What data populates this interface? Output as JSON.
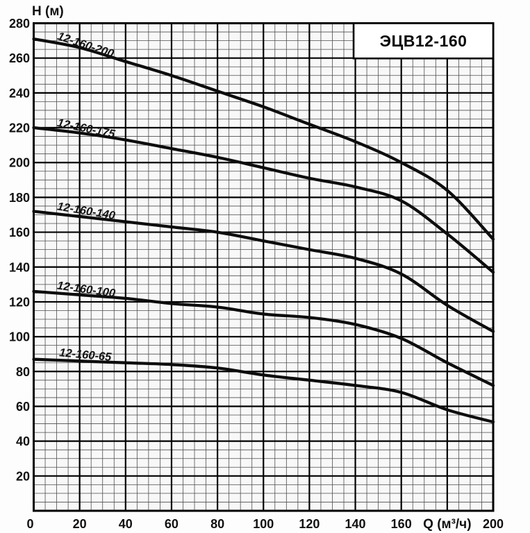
{
  "chart_data": {
    "type": "line",
    "title": "ЭЦВ12-160",
    "xlabel": "Q (м³/ч)",
    "ylabel": "H (м)",
    "xlim": [
      0,
      200
    ],
    "ylim": [
      0,
      280
    ],
    "x_tick_step": 20,
    "y_tick_step": 20,
    "x_minor_step": 5,
    "y_minor_step": 5,
    "x_tick_labels": [
      0,
      20,
      40,
      60,
      80,
      100,
      120,
      140,
      160,
      200
    ],
    "y_tick_labels": [
      20,
      40,
      60,
      80,
      100,
      120,
      140,
      160,
      180,
      200,
      220,
      240,
      260,
      280
    ],
    "grid": "major+minor",
    "legend_position": "inline-curve-labels",
    "x": [
      0,
      20,
      40,
      60,
      80,
      100,
      120,
      140,
      160,
      180,
      200
    ],
    "series": [
      {
        "name": "12-160-200",
        "values": [
          271,
          266,
          258,
          250,
          241,
          232,
          222,
          212,
          200,
          184,
          156
        ],
        "label_q": 10
      },
      {
        "name": "12-160-175",
        "values": [
          220,
          217,
          213,
          208,
          203,
          197,
          191,
          186,
          178,
          159,
          137
        ],
        "label_q": 10
      },
      {
        "name": "12-160-140",
        "values": [
          172,
          169,
          166,
          163,
          160,
          155,
          150,
          145,
          136,
          118,
          103
        ],
        "label_q": 10
      },
      {
        "name": "12-160-100",
        "values": [
          126,
          124,
          122,
          119,
          117,
          113,
          111,
          107,
          99,
          85,
          72
        ],
        "label_q": 10
      },
      {
        "name": "12-160-65",
        "values": [
          87,
          86,
          85,
          84,
          82,
          78,
          75,
          72,
          68,
          58,
          51
        ],
        "label_q": 11
      }
    ]
  },
  "colors": {
    "background": "#fdfdfd",
    "plot_fill": "#f8f8f8",
    "grid_minor": "#4d4d4d",
    "grid_major": "#000000",
    "curve": "#0d0d0d",
    "text": "#111111",
    "title_box_fill": "#ffffff",
    "title_box_border": "#000000"
  }
}
